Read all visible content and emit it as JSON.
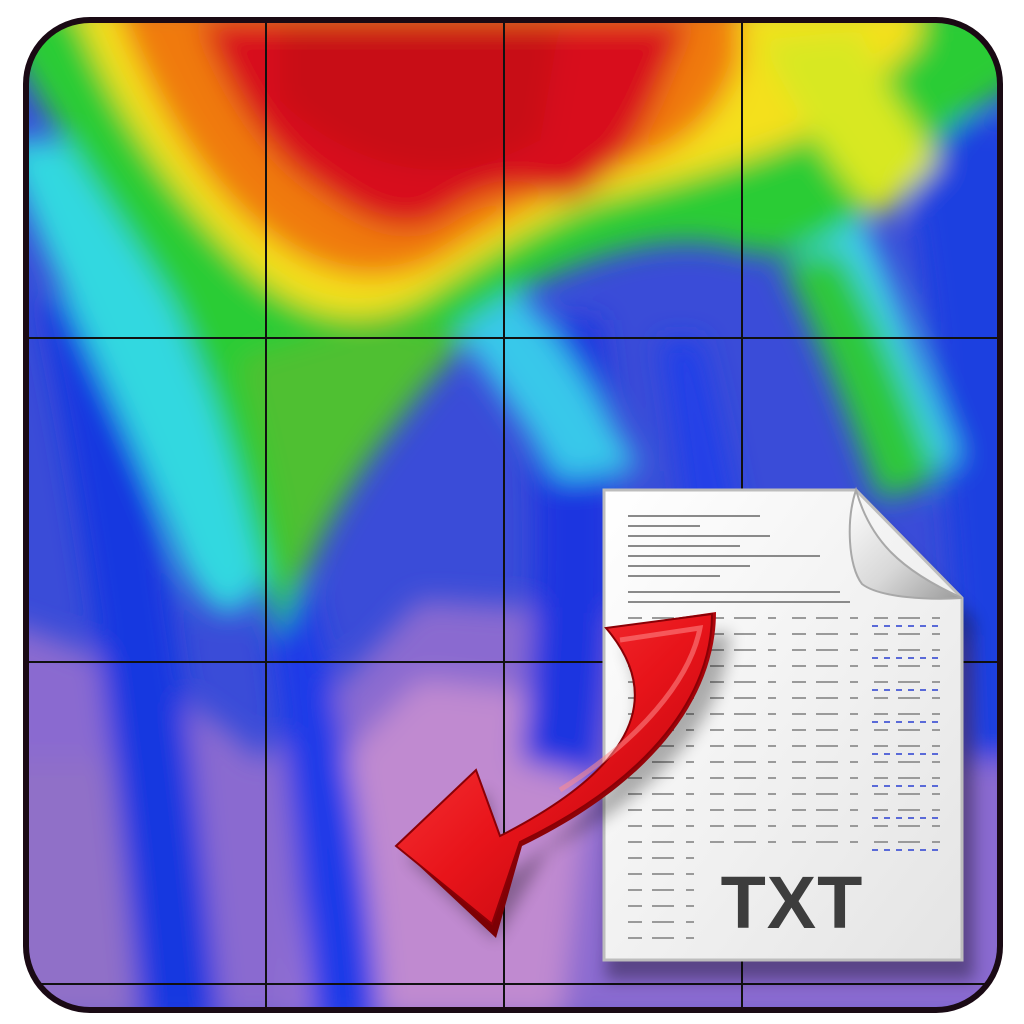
{
  "icon": {
    "name": "heatmap-to-txt-export",
    "file_label": "TXT",
    "arrow_color": "#e8141a",
    "frame_color": "#1a0a14",
    "heatmap_palette": [
      "#d0121a",
      "#f07a10",
      "#f4e01e",
      "#2ccc34",
      "#30d8e0",
      "#1a40e0",
      "#3a4cd8",
      "#b070c8"
    ]
  }
}
